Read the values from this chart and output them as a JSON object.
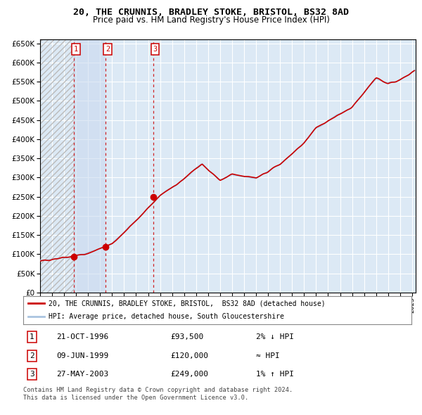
{
  "title1": "20, THE CRUNNIS, BRADLEY STOKE, BRISTOL, BS32 8AD",
  "title2": "Price paid vs. HM Land Registry's House Price Index (HPI)",
  "ylim": [
    0,
    660000
  ],
  "yticks": [
    0,
    50000,
    100000,
    150000,
    200000,
    250000,
    300000,
    350000,
    400000,
    450000,
    500000,
    550000,
    600000,
    650000
  ],
  "xlim_start": 1994.0,
  "xlim_end": 2025.3,
  "sale_dates": [
    1996.81,
    1999.44,
    2003.41
  ],
  "sale_prices": [
    93500,
    120000,
    249000
  ],
  "sale_labels": [
    "1",
    "2",
    "3"
  ],
  "bg_color": "#dce9f5",
  "grid_color": "#ffffff",
  "hpi_color": "#aac4e0",
  "price_color": "#cc0000",
  "legend_line1": "20, THE CRUNNIS, BRADLEY STOKE, BRISTOL,  BS32 8AD (detached house)",
  "legend_line2": "HPI: Average price, detached house, South Gloucestershire",
  "table_rows": [
    [
      "1",
      "21-OCT-1996",
      "£93,500",
      "2% ↓ HPI"
    ],
    [
      "2",
      "09-JUN-1999",
      "£120,000",
      "≈ HPI"
    ],
    [
      "3",
      "27-MAY-2003",
      "£249,000",
      "1% ↑ HPI"
    ]
  ],
  "footer1": "Contains HM Land Registry data © Crown copyright and database right 2024.",
  "footer2": "This data is licensed under the Open Government Licence v3.0."
}
